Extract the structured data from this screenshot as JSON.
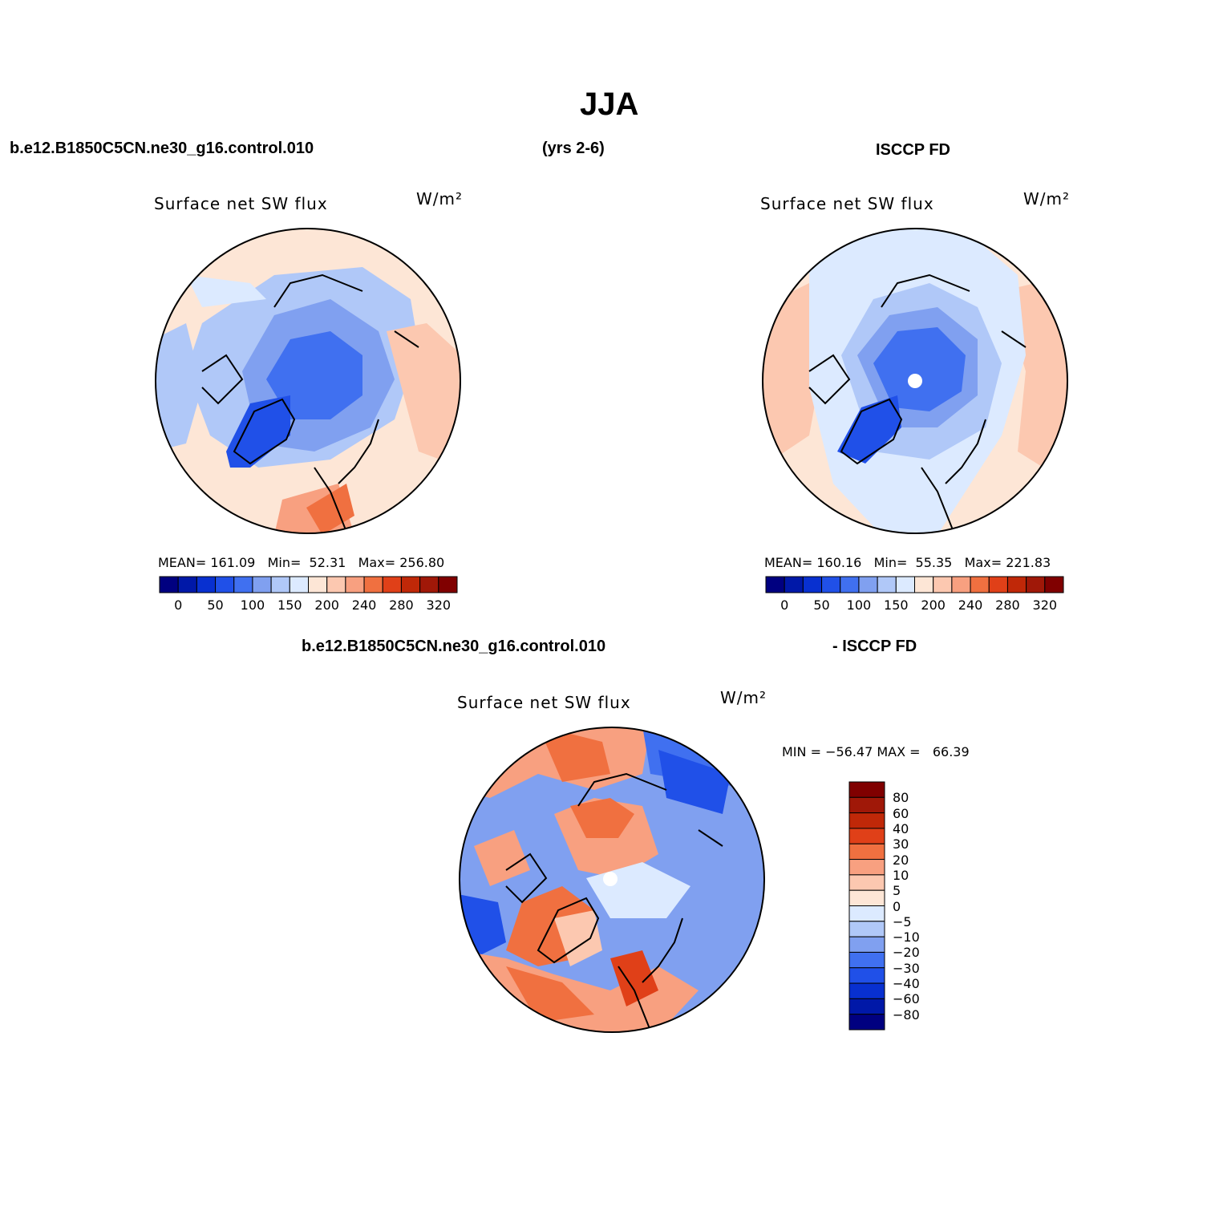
{
  "title": "JJA",
  "top_header": {
    "case": "b.e12.B1850C5CN.ne30_g16.control.010",
    "years": "(yrs 2-6)",
    "obs": "ISCCP FD"
  },
  "panels": [
    {
      "id": "model",
      "variable": "Surface net SW flux",
      "units": "W/m²",
      "stats": {
        "mean_label": "MEAN=",
        "mean": "161.09",
        "min_label": "Min=",
        "min": "52.31",
        "max_label": "Max=",
        "max": "256.80"
      }
    },
    {
      "id": "obs",
      "variable": "Surface net SW flux",
      "units": "W/m²",
      "stats": {
        "mean_label": "MEAN=",
        "mean": "160.16",
        "min_label": "Min=",
        "min": "55.35",
        "max_label": "Max=",
        "max": "221.83"
      }
    }
  ],
  "diff_header": {
    "case": "b.e12.B1850C5CN.ne30_g16.control.010",
    "obs": "- ISCCP FD"
  },
  "diff_panel": {
    "variable": "Surface net SW flux",
    "units": "W/m²",
    "minmax": "MIN = −56.47 MAX =   66.39"
  },
  "abs_colorbar": {
    "colors": [
      "#000080",
      "#0018a8",
      "#0830d0",
      "#2050e8",
      "#4070f0",
      "#80a0f0",
      "#b0c8f8",
      "#dceaff",
      "#fde6d6",
      "#fcc8b0",
      "#f8a080",
      "#f07040",
      "#e04018",
      "#c02808",
      "#a01808",
      "#800000"
    ],
    "tick_labels": [
      "0",
      "50",
      "100",
      "150",
      "200",
      "240",
      "280",
      "320"
    ]
  },
  "diff_colorbar": {
    "colors": [
      "#000080",
      "#0018a8",
      "#0830d0",
      "#2050e8",
      "#4070f0",
      "#80a0f0",
      "#b0c8f8",
      "#dceaff",
      "#fde6d6",
      "#fcc8b0",
      "#f8a080",
      "#f07040",
      "#e04018",
      "#c02808",
      "#a01808",
      "#800000"
    ],
    "tick_labels": [
      "80",
      "60",
      "40",
      "30",
      "20",
      "10",
      "5",
      "0",
      "−5",
      "−10",
      "−20",
      "−30",
      "−40",
      "−60",
      "−80"
    ]
  }
}
